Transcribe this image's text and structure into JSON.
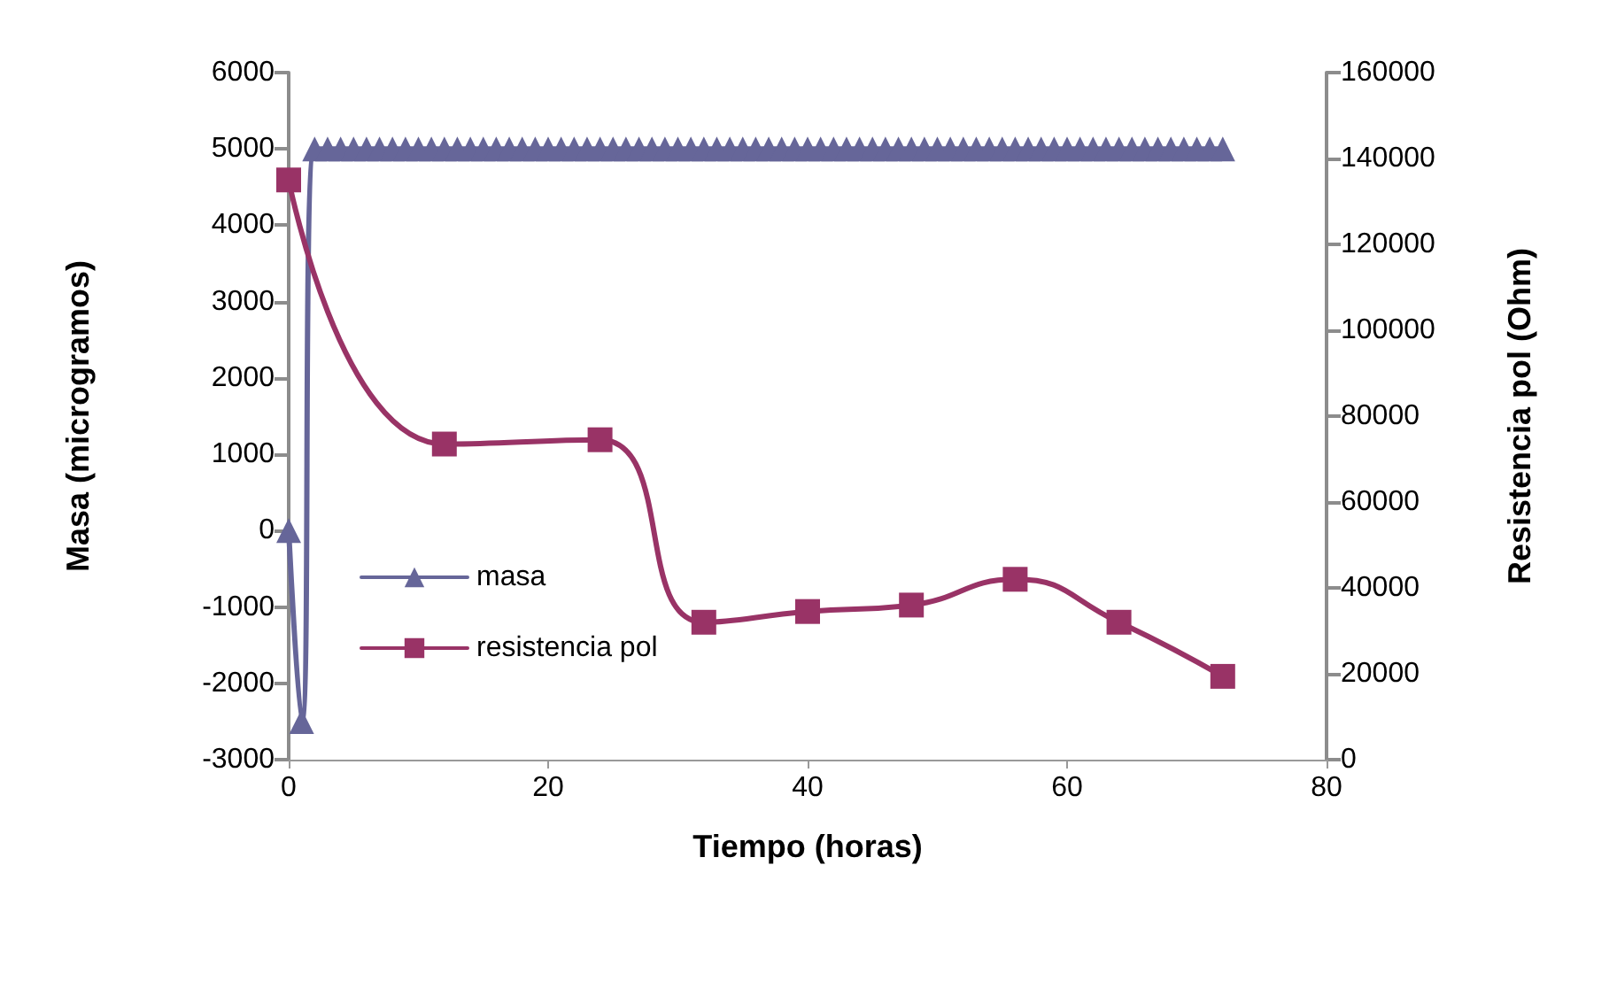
{
  "chart_data": {
    "type": "line",
    "xlabel": "Tiempo (horas)",
    "ylabel": "Masa (microgramos)",
    "y2label": "Resistencia pol (Ohm)",
    "xlim": [
      0,
      80
    ],
    "xticks": [
      0,
      20,
      40,
      60,
      80
    ],
    "ylim": [
      -3000,
      6000
    ],
    "yticks": [
      -3000,
      -2000,
      -1000,
      0,
      1000,
      2000,
      3000,
      4000,
      5000,
      6000
    ],
    "y2lim": [
      0,
      160000
    ],
    "y2ticks": [
      0,
      20000,
      40000,
      60000,
      80000,
      100000,
      120000,
      140000,
      160000
    ],
    "grid": false,
    "legend": "left",
    "series": [
      {
        "name": "masa",
        "color": "#666699",
        "marker": "triangle",
        "x": [
          0,
          1,
          2,
          3,
          4,
          5,
          6,
          7,
          8,
          9,
          10,
          11,
          12,
          13,
          14,
          15,
          16,
          17,
          18,
          19,
          20,
          21,
          22,
          23,
          24,
          25,
          26,
          27,
          28,
          29,
          30,
          31,
          32,
          33,
          34,
          35,
          36,
          37,
          38,
          39,
          40,
          41,
          42,
          43,
          44,
          45,
          46,
          47,
          48,
          49,
          50,
          51,
          52,
          53,
          54,
          55,
          56,
          57,
          58,
          59,
          60,
          61,
          62,
          63,
          64,
          65,
          66,
          67,
          68,
          69,
          70,
          71,
          72
        ],
        "values": [
          0,
          -2500,
          5000,
          5000,
          5000,
          5000,
          5000,
          5000,
          5000,
          5000,
          5000,
          5000,
          5000,
          5000,
          5000,
          5000,
          5000,
          5000,
          5000,
          5000,
          5000,
          5000,
          5000,
          5000,
          5000,
          5000,
          5000,
          5000,
          5000,
          5000,
          5000,
          5000,
          5000,
          5000,
          5000,
          5000,
          5000,
          5000,
          5000,
          5000,
          5000,
          5000,
          5000,
          5000,
          5000,
          5000,
          5000,
          5000,
          5000,
          5000,
          5000,
          5000,
          5000,
          5000,
          5000,
          5000,
          5000,
          5000,
          5000,
          5000,
          5000,
          5000,
          5000,
          5000,
          5000,
          5000,
          5000,
          5000,
          5000,
          5000,
          5000,
          5000,
          5000
        ]
      },
      {
        "name": "resistencia pol",
        "color": "#993366",
        "marker": "square",
        "axis": "y2",
        "x": [
          0,
          12,
          24,
          32,
          40,
          48,
          56,
          64,
          72
        ],
        "values": [
          135000,
          73500,
          74500,
          32000,
          34500,
          36000,
          42000,
          32000,
          19400
        ]
      }
    ]
  }
}
